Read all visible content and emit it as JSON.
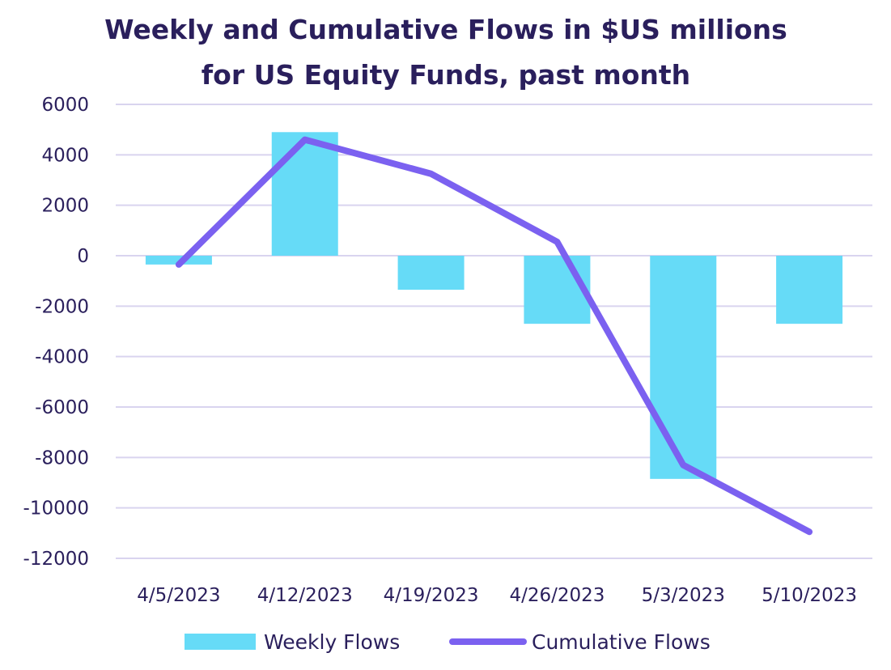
{
  "chart_data": {
    "type": "bar",
    "title": "Weekly and Cumulative Flows in $US millions",
    "subtitle": "for US Equity Funds, past month",
    "xlabel": "",
    "ylabel": "",
    "ylim": [
      -12000,
      6000
    ],
    "yticks": [
      6000,
      4000,
      2000,
      0,
      -2000,
      -4000,
      -6000,
      -8000,
      -10000,
      -12000
    ],
    "categories": [
      "4/5/2023",
      "4/12/2023",
      "4/19/2023",
      "4/26/2023",
      "5/3/2023",
      "5/10/2023"
    ],
    "grid": true,
    "legend_position": "bottom",
    "series": [
      {
        "name": "Weekly Flows",
        "type": "bar",
        "color": "#66dbf7",
        "values": [
          -350,
          4900,
          -1350,
          -2700,
          -8850,
          -2700
        ]
      },
      {
        "name": "Cumulative Flows",
        "type": "line",
        "color": "#7b61f0",
        "values": [
          -350,
          4600,
          3250,
          550,
          -8300,
          -10950
        ]
      }
    ]
  }
}
